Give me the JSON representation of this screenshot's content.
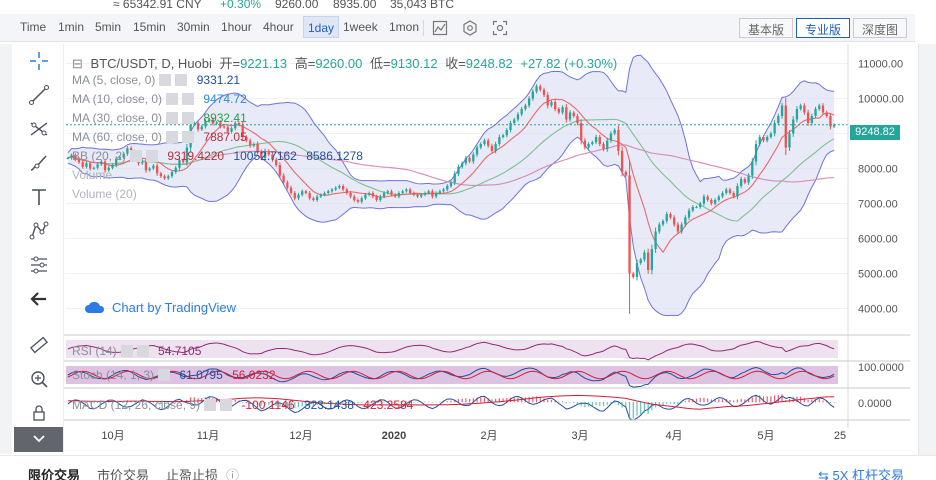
{
  "top_strip": {
    "price_fiat": "≈ 65342.91 CNY",
    "change": "+0.30%",
    "high": "9260.00",
    "low": "8935.00",
    "volume": "35,043 BTC"
  },
  "toolbar": {
    "timeframes": [
      "Time",
      "1min",
      "5min",
      "15min",
      "30min",
      "1hour",
      "4hour",
      "1day",
      "1week",
      "1mon"
    ],
    "active_timeframe": "1day",
    "icons": [
      "indicators-icon",
      "settings-icon",
      "screenshot-icon"
    ],
    "buttons": [
      "基本版",
      "专业版",
      "深度图"
    ],
    "active_button": "专业版"
  },
  "symbol": {
    "name": "BTC/USDT, D, Huobi",
    "open_label": "开=",
    "open": "9221.13",
    "high_label": "高=",
    "high": "9260.00",
    "low_label": "低=",
    "low": "9130.12",
    "close_label": "收=",
    "close": "9248.82",
    "change": "+27.82 (+0.30%)"
  },
  "indicators": {
    "ma5": {
      "label": "MA (5, close, 0)",
      "value": "9331.21",
      "color": "#1e4fa0"
    },
    "ma10": {
      "label": "MA (10, close, 0)",
      "value": "9474.72",
      "color": "#2b8ad6"
    },
    "ma30": {
      "label": "MA (30, close, 0)",
      "value": "8932.41",
      "color": "#2e9a4a"
    },
    "ma60": {
      "label": "MA (60, close, 0)",
      "value": "7887.05",
      "color": "#b5303a"
    },
    "bb": {
      "label": "BB (20, 2)",
      "values": [
        "9319.4220",
        "10052.7162",
        "8586.1278"
      ],
      "colors": [
        "#b5303a",
        "#1e4fa0",
        "#1e4fa0"
      ]
    },
    "volume_a": "Volume",
    "volume_b": "Volume (20)"
  },
  "sub_indicators": {
    "rsi": {
      "label": "RSI (14)",
      "value": "54.7105"
    },
    "stoch": {
      "label": "Stoch (14, 1, 3)",
      "values": [
        "61.0795",
        "56.0232"
      ]
    },
    "macd": {
      "label": "MACD (12, 26, close, 9)",
      "values": [
        "-100.1146",
        "323.1438",
        "423.2584"
      ]
    }
  },
  "watermark": "Chart by TradingView",
  "price_tag": "9248.82",
  "colors": {
    "up": "#26a69a",
    "down": "#ef5350",
    "bb_fill": "#d6d8f2",
    "bb_line": "#6f73d9",
    "accent": "#1f5fbf"
  },
  "left_tools": [
    "crosshair-icon",
    "trendline-icon",
    "fib-icon",
    "brush-icon",
    "text-icon",
    "pattern-icon",
    "measure-icon",
    "back-arrow-icon",
    "ruler-icon",
    "zoom-icon",
    "lock-icon"
  ],
  "bottom_tabs": [
    "限价交易",
    "市价交易",
    "止盈止损"
  ],
  "bottom_right": "5X 杠杆交易",
  "chart_data": {
    "type": "candlestick",
    "symbol": "BTC/USDT",
    "x_ticks": [
      "10月",
      "11月",
      "12月",
      "2020",
      "2月",
      "3月",
      "4月",
      "5月",
      "25"
    ],
    "y_ticks": [
      4000,
      5000,
      6000,
      7000,
      8000,
      9000,
      10000,
      11000
    ],
    "ylim": [
      3500,
      11500
    ],
    "series_close": [
      8300,
      8380,
      8260,
      8180,
      8050,
      8150,
      8000,
      8020,
      8120,
      8200,
      7950,
      8020,
      8100,
      8280,
      8320,
      8420,
      8580,
      8480,
      8350,
      8150,
      8220,
      7950,
      8000,
      8080,
      7860,
      7780,
      7720,
      7780,
      7900,
      8020,
      8240,
      8180,
      8600,
      9250,
      9300,
      9120,
      9200,
      9350,
      9400,
      9280,
      9320,
      9200,
      9180,
      9050,
      9150,
      9300,
      9250,
      8900,
      8800,
      8650,
      8700,
      8480,
      8300,
      8500,
      8400,
      8250,
      8100,
      7800,
      7600,
      7450,
      7300,
      7150,
      7250,
      7350,
      7300,
      7150,
      7100,
      7200,
      7250,
      7300,
      7350,
      7400,
      7450,
      7500,
      7400,
      7300,
      7200,
      7100,
      7050,
      7150,
      7250,
      7300,
      7200,
      7100,
      7200,
      7300,
      7350,
      7250,
      7200,
      7300,
      7350,
      7400,
      7300,
      7250,
      7200,
      7250,
      7300,
      7350,
      7200,
      7300,
      7350,
      7400,
      7500,
      7600,
      7850,
      8050,
      8150,
      8300,
      8200,
      8400,
      8600,
      8700,
      8800,
      8650,
      8500,
      8700,
      8900,
      8950,
      9100,
      9300,
      9400,
      9550,
      9700,
      9800,
      10000,
      10200,
      10350,
      10250,
      10100,
      9800,
      9900,
      9700,
      9600,
      9750,
      9400,
      9600,
      9500,
      9300,
      8800,
      8600,
      8700,
      8750,
      8900,
      8700,
      8550,
      8800,
      9000,
      9100,
      8500,
      7900,
      7800,
      5000,
      4900,
      5300,
      5400,
      5600,
      5100,
      5700,
      6200,
      6400,
      6500,
      6700,
      6600,
      6400,
      6200,
      6400,
      6600,
      6800,
      6900,
      6900,
      7000,
      7200,
      7100,
      7000,
      7100,
      7200,
      7300,
      7400,
      7300,
      7200,
      7500,
      7700,
      7600,
      7800,
      8200,
      8700,
      8900,
      8800,
      8900,
      9000,
      9300,
      9500,
      9800,
      8600,
      9000,
      9400,
      9700,
      9800,
      9600,
      9300,
      9500,
      9700,
      9800,
      9600,
      9500,
      9200,
      9248.82
    ]
  }
}
